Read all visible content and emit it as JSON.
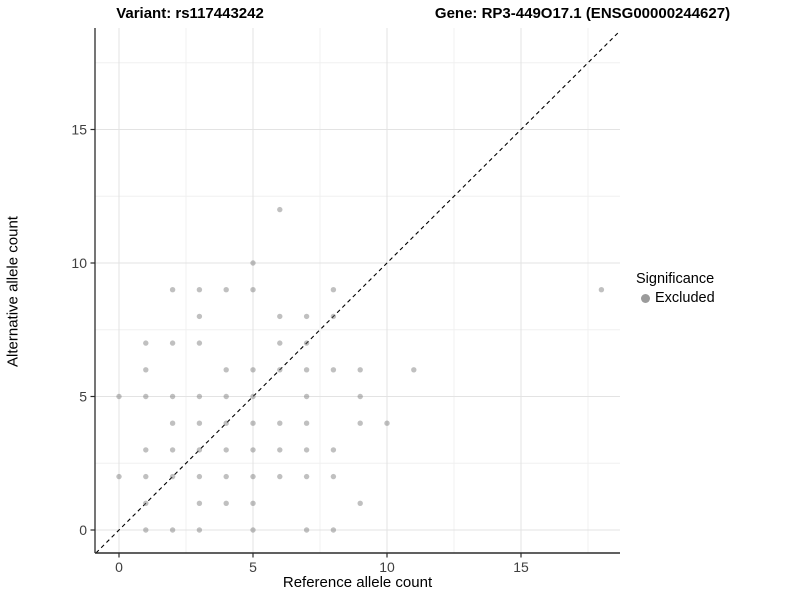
{
  "titles": {
    "variant": "Variant: rs117443242",
    "gene": "Gene: RP3-449O17.1 (ENSG00000244627)"
  },
  "chart_data": {
    "type": "scatter",
    "xlabel": "Reference allele count",
    "ylabel": "Alternative allele count",
    "x_ticks": [
      0,
      5,
      10,
      15
    ],
    "y_ticks": [
      0,
      5,
      10,
      15
    ],
    "x_tick_labels": [
      "0",
      "5",
      "10",
      "15"
    ],
    "y_tick_labels": [
      "0",
      "5",
      "10",
      "15"
    ],
    "x_minor": [
      2.5,
      7.5,
      12.5,
      17.5
    ],
    "y_minor": [
      2.5,
      7.5,
      12.5,
      17.5
    ],
    "xlim": [
      -0.9,
      18.7
    ],
    "ylim": [
      -0.86,
      18.8
    ],
    "grid": "major+minor on white panel",
    "diagonal_line": {
      "equation": "y = x",
      "style": "dashed",
      "color": "#000000"
    },
    "points": [
      [
        1,
        0
      ],
      [
        2,
        0
      ],
      [
        3,
        0
      ],
      [
        5,
        0
      ],
      [
        7,
        0
      ],
      [
        8,
        0
      ],
      [
        1,
        1
      ],
      [
        3,
        1
      ],
      [
        4,
        1
      ],
      [
        5,
        1
      ],
      [
        9,
        1
      ],
      [
        0,
        2
      ],
      [
        1,
        2
      ],
      [
        2,
        2
      ],
      [
        3,
        2
      ],
      [
        4,
        2
      ],
      [
        5,
        2
      ],
      [
        6,
        2
      ],
      [
        7,
        2
      ],
      [
        8,
        2
      ],
      [
        1,
        3
      ],
      [
        2,
        3
      ],
      [
        3,
        3
      ],
      [
        4,
        3
      ],
      [
        5,
        3
      ],
      [
        6,
        3
      ],
      [
        7,
        3
      ],
      [
        8,
        3
      ],
      [
        2,
        4
      ],
      [
        3,
        4
      ],
      [
        4,
        4
      ],
      [
        5,
        4
      ],
      [
        6,
        4
      ],
      [
        7,
        4
      ],
      [
        9,
        4
      ],
      [
        10,
        4
      ],
      [
        0,
        5
      ],
      [
        1,
        5
      ],
      [
        2,
        5
      ],
      [
        3,
        5
      ],
      [
        4,
        5
      ],
      [
        5,
        5
      ],
      [
        7,
        5
      ],
      [
        9,
        5
      ],
      [
        1,
        6
      ],
      [
        4,
        6
      ],
      [
        5,
        6
      ],
      [
        6,
        6
      ],
      [
        7,
        6
      ],
      [
        8,
        6
      ],
      [
        9,
        6
      ],
      [
        11,
        6
      ],
      [
        1,
        7
      ],
      [
        2,
        7
      ],
      [
        3,
        7
      ],
      [
        6,
        7
      ],
      [
        7,
        7
      ],
      [
        3,
        8
      ],
      [
        6,
        8
      ],
      [
        7,
        8
      ],
      [
        8,
        8
      ],
      [
        2,
        9
      ],
      [
        3,
        9
      ],
      [
        4,
        9
      ],
      [
        5,
        9
      ],
      [
        8,
        9
      ],
      [
        18,
        9
      ],
      [
        5,
        10
      ],
      [
        6,
        12
      ]
    ],
    "point_color": "#737373",
    "point_opacity": 0.45,
    "colors": {
      "major_grid": "#e3e3e3",
      "minor_grid": "#f0f0f0",
      "axis_line": "#2b2b2b",
      "tick_label": "#404040"
    },
    "legend": {
      "title": "Significance",
      "position": "right",
      "entries": [
        {
          "label": "Excluded",
          "color": "#9b9b9b"
        }
      ]
    }
  }
}
